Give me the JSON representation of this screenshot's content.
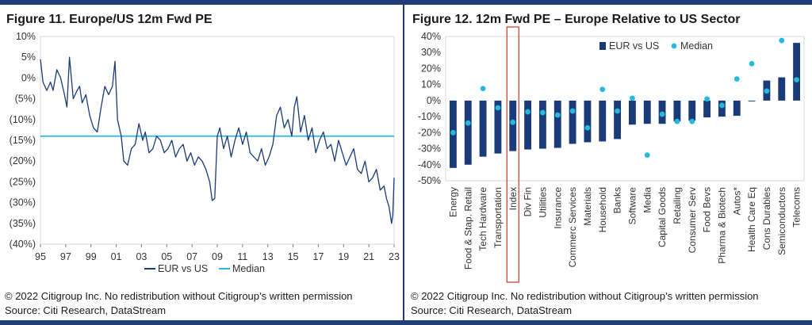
{
  "colors": {
    "navy": "#1a3a78",
    "cyan": "#27b9dd",
    "rule": "#1f3e78",
    "highlight": "#c0392b",
    "grid": "#d9d9d9",
    "axis": "#7f7f7f"
  },
  "left": {
    "title": "Figure 11. Europe/US 12m Fwd PE",
    "copyright": "© 2022 Citigroup Inc. No redistribution without Citigroup’s written permission",
    "source": "Source: Citi Research, DataStream"
  },
  "right": {
    "title": "Figure 12. 12m Fwd PE – Europe Relative to US Sector",
    "copyright": "© 2022 Citigroup Inc. No redistribution without Citigroup’s written permission",
    "source": "Source: Citi Research, DataStream"
  },
  "chart_data": [
    {
      "type": "line",
      "title": "Figure 11. Europe/US 12m Fwd PE",
      "xlabel": "",
      "ylabel": "",
      "xlim": [
        1995,
        2023
      ],
      "ylim": [
        -40,
        10
      ],
      "x_ticks": [
        95,
        97,
        99,
        1,
        3,
        5,
        7,
        9,
        11,
        13,
        15,
        17,
        19,
        21,
        23
      ],
      "x_tick_labels": [
        "95",
        "97",
        "99",
        "01",
        "03",
        "05",
        "07",
        "09",
        "11",
        "13",
        "15",
        "17",
        "19",
        "21",
        "23"
      ],
      "y_ticks": [
        10,
        5,
        0,
        -5,
        -10,
        -15,
        -20,
        -25,
        -30,
        -35,
        -40
      ],
      "y_tick_labels": [
        "10%",
        "5%",
        "0%",
        "(5%)",
        "(10%)",
        "(15%)",
        "(20%)",
        "(25%)",
        "(30%)",
        "(35%)",
        "(40%)"
      ],
      "legend_position": "bottom-center",
      "series": [
        {
          "name": "EUR vs US",
          "x": [
            1995.0,
            1995.2,
            1995.5,
            1995.8,
            1996.0,
            1996.3,
            1996.6,
            1996.9,
            1997.1,
            1997.3,
            1997.6,
            1997.9,
            1998.1,
            1998.3,
            1998.6,
            1998.9,
            1999.2,
            1999.5,
            1999.8,
            2000.1,
            2000.4,
            2000.7,
            2000.9,
            2001.1,
            2001.4,
            2001.6,
            2001.9,
            2002.2,
            2002.5,
            2002.8,
            2003.1,
            2003.3,
            2003.6,
            2003.9,
            2004.2,
            2004.5,
            2004.8,
            2005.1,
            2005.4,
            2005.7,
            2006.0,
            2006.3,
            2006.6,
            2006.9,
            2007.2,
            2007.5,
            2007.8,
            2008.1,
            2008.4,
            2008.6,
            2008.8,
            2009.0,
            2009.2,
            2009.5,
            2009.8,
            2010.1,
            2010.4,
            2010.7,
            2011.0,
            2011.3,
            2011.6,
            2011.9,
            2012.2,
            2012.5,
            2012.8,
            2013.1,
            2013.4,
            2013.7,
            2014.0,
            2014.3,
            2014.6,
            2014.9,
            2015.1,
            2015.3,
            2015.6,
            2015.9,
            2016.2,
            2016.5,
            2016.8,
            2017.1,
            2017.4,
            2017.7,
            2018.0,
            2018.3,
            2018.6,
            2018.9,
            2019.2,
            2019.5,
            2019.8,
            2020.1,
            2020.4,
            2020.7,
            2021.0,
            2021.3,
            2021.6,
            2021.9,
            2022.2,
            2022.4,
            2022.6,
            2022.8,
            2022.9,
            2023.0
          ],
          "values": [
            4.5,
            -1,
            -3,
            -1,
            -3,
            2,
            0,
            -4,
            -7,
            5,
            -5,
            -3,
            -2,
            -6,
            -4,
            -9,
            -12,
            -13,
            -7,
            -2,
            -4,
            -2,
            4,
            -10,
            -14,
            -20,
            -21,
            -17,
            -16,
            -11,
            -15,
            -13,
            -18,
            -17,
            -14,
            -15,
            -18,
            -17,
            -15,
            -19,
            -17,
            -16,
            -20,
            -18,
            -21,
            -19,
            -20,
            -22,
            -25,
            -29.5,
            -29,
            -14,
            -12,
            -17,
            -14,
            -19,
            -15,
            -12,
            -16,
            -13,
            -18,
            -19,
            -20,
            -17,
            -21,
            -19,
            -16,
            -9,
            -7,
            -12,
            -10,
            -14,
            -7,
            -4.5,
            -13,
            -9,
            -15,
            -12,
            -18,
            -15,
            -13,
            -17,
            -16,
            -20,
            -15,
            -18,
            -21,
            -19,
            -17,
            -22,
            -23,
            -20,
            -25,
            -24,
            -22,
            -27,
            -26,
            -29,
            -31,
            -35,
            -33,
            -24
          ]
        },
        {
          "name": "Median",
          "constant": -14,
          "values": [
            -14,
            -14
          ]
        }
      ]
    },
    {
      "type": "bar",
      "title": "Figure 12. 12m Fwd PE – Europe Relative to US Sector",
      "xlabel": "",
      "ylabel": "",
      "ylim": [
        -50,
        40
      ],
      "y_ticks": [
        40,
        30,
        20,
        10,
        0,
        -10,
        -20,
        -30,
        -40,
        -50
      ],
      "y_tick_labels": [
        "40%",
        "30%",
        "20%",
        "10%",
        "0%",
        "-10%",
        "-20%",
        "-30%",
        "-40%",
        "-50%"
      ],
      "legend_position": "top-center",
      "highlighted_category": "Index",
      "categories": [
        "Energy",
        "Food & Stap. Retail",
        "Tech Hardware",
        "Transportation",
        "Index",
        "Div Fin",
        "Utilities",
        "Insurance",
        "Commerc Services",
        "Materials",
        "Household",
        "Banks",
        "Software",
        "Media",
        "Capital Goods",
        "Retailing",
        "Consumer Serv",
        "Food Bevs",
        "Pharma & Biotech",
        "Autos*",
        "Health Care Eq",
        "Cons Durables",
        "Semiconductors",
        "Telecoms"
      ],
      "series": [
        {
          "name": "EUR vs US",
          "values": [
            -42,
            -40,
            -35,
            -33,
            -31.5,
            -30.5,
            -30,
            -29.5,
            -27,
            -26,
            -25.5,
            -24,
            -15,
            -14.5,
            -14.5,
            -13,
            -12.5,
            -10.5,
            -10,
            -9.5,
            -0.5,
            12.5,
            14.5,
            36
          ]
        },
        {
          "name": "Median",
          "values": [
            -20,
            -14,
            7.5,
            -4.5,
            -13.5,
            -7,
            -7.5,
            -9,
            -6.5,
            -17,
            7,
            -6.5,
            1.5,
            -34,
            -8.5,
            -13,
            -13,
            1,
            -3,
            13.5,
            23,
            6,
            37.5,
            13
          ]
        }
      ]
    }
  ]
}
